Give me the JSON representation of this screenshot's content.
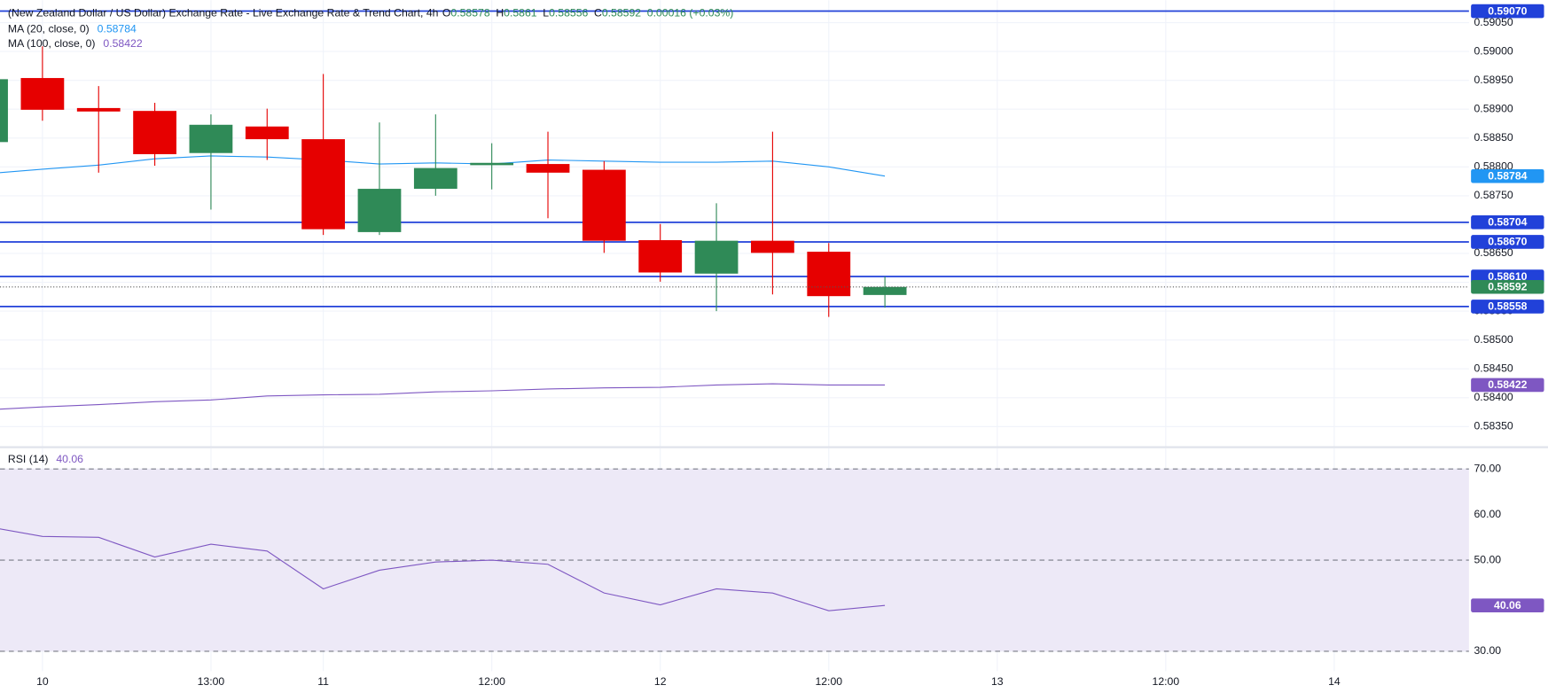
{
  "chart_data": [
    {
      "type": "candlestick",
      "title": "(New Zealand Dollar / US Dollar) Exchange Rate - Live Exchange Rate & Trend Chart, 4h",
      "ohlc_letters": [
        "O",
        "H",
        "L",
        "C"
      ],
      "change": "0.00016 (+0.03%)",
      "x": [
        0,
        1,
        2,
        3,
        4,
        5,
        6,
        7,
        8,
        9,
        10,
        11,
        12,
        13,
        14,
        15,
        16
      ],
      "open": [
        0.58843,
        0.58954,
        0.58902,
        0.58897,
        0.58824,
        0.5887,
        0.58848,
        0.58687,
        0.58762,
        0.58803,
        0.58805,
        0.58795,
        0.58673,
        0.58615,
        0.58672,
        0.58653,
        0.58578
      ],
      "high": [
        0.58952,
        0.59009,
        0.5894,
        0.58911,
        0.58891,
        0.58901,
        0.58961,
        0.58877,
        0.58891,
        0.58841,
        0.58861,
        0.5881,
        0.58701,
        0.58737,
        0.58861,
        0.58668,
        0.5861
      ],
      "low": [
        0.58843,
        0.5888,
        0.5879,
        0.58802,
        0.58726,
        0.58812,
        0.58682,
        0.58682,
        0.5875,
        0.58761,
        0.58711,
        0.58651,
        0.58601,
        0.5855,
        0.58579,
        0.5854,
        0.58556
      ],
      "close": [
        0.58952,
        0.58899,
        0.58896,
        0.58822,
        0.58873,
        0.58848,
        0.58692,
        0.58762,
        0.58798,
        0.58807,
        0.5879,
        0.58672,
        0.58617,
        0.58672,
        0.58651,
        0.58576,
        0.58592
      ],
      "up_color": "#2f8a57",
      "down_color": "#e60000",
      "series": [
        {
          "name": "MA (20, close, 0)",
          "color": "#2196f3",
          "values": [
            0.58788,
            0.58796,
            0.58803,
            0.58814,
            0.58819,
            0.58817,
            0.58812,
            0.58805,
            0.58807,
            0.58805,
            0.58812,
            0.5881,
            0.58808,
            0.58808,
            0.5881,
            0.588,
            0.58784
          ]
        },
        {
          "name": "MA (100, close, 0)",
          "color": "#7e57c2",
          "values": [
            0.58379,
            0.58384,
            0.58388,
            0.58393,
            0.58396,
            0.58403,
            0.58405,
            0.58406,
            0.5841,
            0.58412,
            0.58415,
            0.58417,
            0.58418,
            0.58422,
            0.58424,
            0.58422,
            0.58422
          ]
        }
      ],
      "levels": [
        {
          "value": 0.5907,
          "label": "0.59070"
        },
        {
          "value": 0.58704,
          "label": "0.58704"
        },
        {
          "value": 0.5867,
          "label": "0.58670"
        },
        {
          "value": 0.5861,
          "label": "0.58610"
        },
        {
          "value": 0.58558,
          "label": "0.58558"
        }
      ],
      "level_color": "#2141d9",
      "ylim": [
        0.58316,
        0.59089
      ],
      "yticks": [
        {
          "value": 0.5905,
          "label": "0.59050"
        },
        {
          "value": 0.59,
          "label": "0.59000"
        },
        {
          "value": 0.5895,
          "label": "0.58950"
        },
        {
          "value": 0.589,
          "label": "0.58900"
        },
        {
          "value": 0.5885,
          "label": "0.58850"
        },
        {
          "value": 0.588,
          "label": "0.58800"
        },
        {
          "value": 0.5875,
          "label": "0.58750"
        },
        {
          "value": 0.587,
          "label": "0.58700"
        },
        {
          "value": 0.5865,
          "label": "0.58650"
        },
        {
          "value": 0.586,
          "label": "0.58600"
        },
        {
          "value": 0.5855,
          "label": "0.58550"
        },
        {
          "value": 0.585,
          "label": "0.58500"
        },
        {
          "value": 0.5845,
          "label": "0.58450"
        },
        {
          "value": 0.584,
          "label": "0.58400"
        },
        {
          "value": 0.5835,
          "label": "0.58350"
        }
      ],
      "xlim": [
        0.244,
        26.4
      ],
      "xticks": [
        {
          "value": 1,
          "label": "10"
        },
        {
          "value": 4,
          "label": "13:00"
        },
        {
          "value": 6,
          "label": "11"
        },
        {
          "value": 9,
          "label": "12:00"
        },
        {
          "value": 12,
          "label": "12"
        },
        {
          "value": 15,
          "label": "12:00"
        },
        {
          "value": 18,
          "label": "13"
        },
        {
          "value": 21,
          "label": "12:00"
        },
        {
          "value": 24,
          "label": "14"
        }
      ],
      "grid": true
    },
    {
      "type": "line",
      "x": [
        0,
        1,
        2,
        3,
        4,
        5,
        6,
        7,
        8,
        9,
        10,
        11,
        12,
        13,
        14,
        15,
        16
      ],
      "series": [
        {
          "name": "RSI (14)",
          "color": "#7e57c2",
          "values": [
            57.4,
            55.2,
            55.0,
            50.7,
            53.5,
            52.0,
            43.7,
            47.8,
            49.6,
            50.0,
            49.1,
            42.8,
            40.2,
            43.7,
            42.8,
            38.9,
            40.06
          ]
        }
      ],
      "levels": [
        70,
        50,
        30
      ],
      "band_color": "#ede9f7",
      "ylim": [
        25.65,
        74.57
      ],
      "yticks": [
        {
          "value": 70,
          "label": "70.00"
        },
        {
          "value": 60,
          "label": "60.00"
        },
        {
          "value": 50,
          "label": "50.00"
        },
        {
          "value": 40,
          "label": "40.00"
        },
        {
          "value": 30,
          "label": "30.00"
        }
      ],
      "xlim": [
        0.244,
        26.4
      ],
      "grid": true
    }
  ]
}
